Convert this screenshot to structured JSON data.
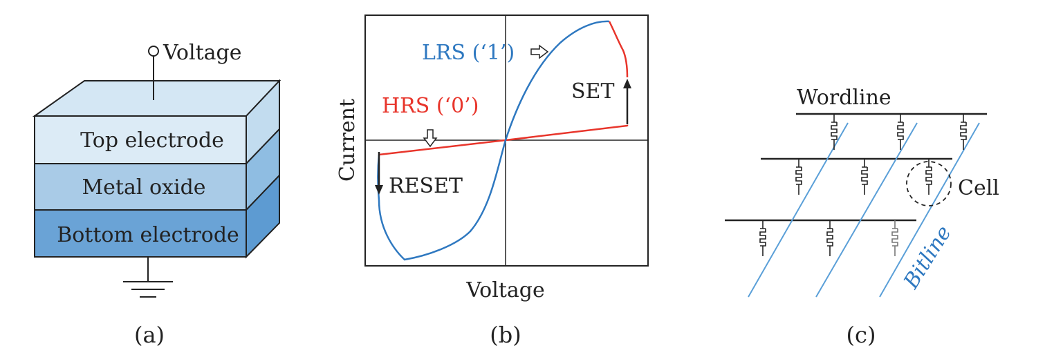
{
  "panel_a": {
    "voltage_label": "Voltage",
    "layers": [
      "Top electrode",
      "Metal oxide",
      "Bottom electrode"
    ],
    "caption": "(a)",
    "colors": {
      "top_face": "#d6e8f5",
      "top_layer": "#dceaf6",
      "middle_layer": "#a9cbe7",
      "bottom_layer": "#6aa3d6"
    }
  },
  "panel_b": {
    "lrs_label": "LRS (‘1’)",
    "hrs_label": "HRS (‘0’)",
    "set_label": "SET",
    "reset_label": "RESET",
    "xlabel": "Voltage",
    "ylabel": "Current",
    "caption": "(b)",
    "colors": {
      "lrs": "#2e78c0",
      "hrs": "#e8352b"
    }
  },
  "panel_c": {
    "wordline_label": "Wordline",
    "bitline_label": "Bitline",
    "cell_label": "Cell",
    "caption": "(c)",
    "colors": {
      "bitline": "#5a9fd8"
    }
  }
}
